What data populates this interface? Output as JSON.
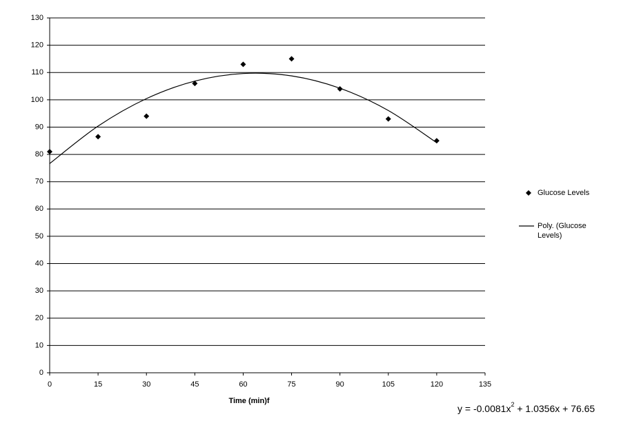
{
  "chart_data": {
    "type": "scatter",
    "x_label": "Time (min)f",
    "xlim": [
      0,
      135
    ],
    "xticks": [
      0,
      15,
      30,
      45,
      60,
      75,
      90,
      105,
      120,
      135
    ],
    "ylim": [
      0,
      130
    ],
    "yticks": [
      0,
      10,
      20,
      30,
      40,
      50,
      60,
      70,
      80,
      90,
      100,
      110,
      120,
      130
    ],
    "grid": true,
    "legend": "right",
    "series": [
      {
        "name": "Glucose Levels",
        "type": "scatter",
        "color": "#000000",
        "x": [
          0,
          15,
          30,
          45,
          60,
          75,
          90,
          105,
          120
        ],
        "values": [
          81,
          86.5,
          94,
          106,
          113,
          115,
          104,
          93,
          85
        ]
      },
      {
        "name": "Poly. (Glucose Levels)",
        "type": "line",
        "color": "#000000",
        "x": [
          0,
          15,
          30,
          45,
          60,
          75,
          90,
          105,
          120
        ],
        "values": [
          76.65,
          90.36,
          100.43,
          106.85,
          109.63,
          108.76,
          104.24,
          96.09,
          84.28
        ]
      }
    ],
    "equation": [
      "y = -0.0081x",
      "2",
      " + 1.0356x + 76.65"
    ]
  }
}
